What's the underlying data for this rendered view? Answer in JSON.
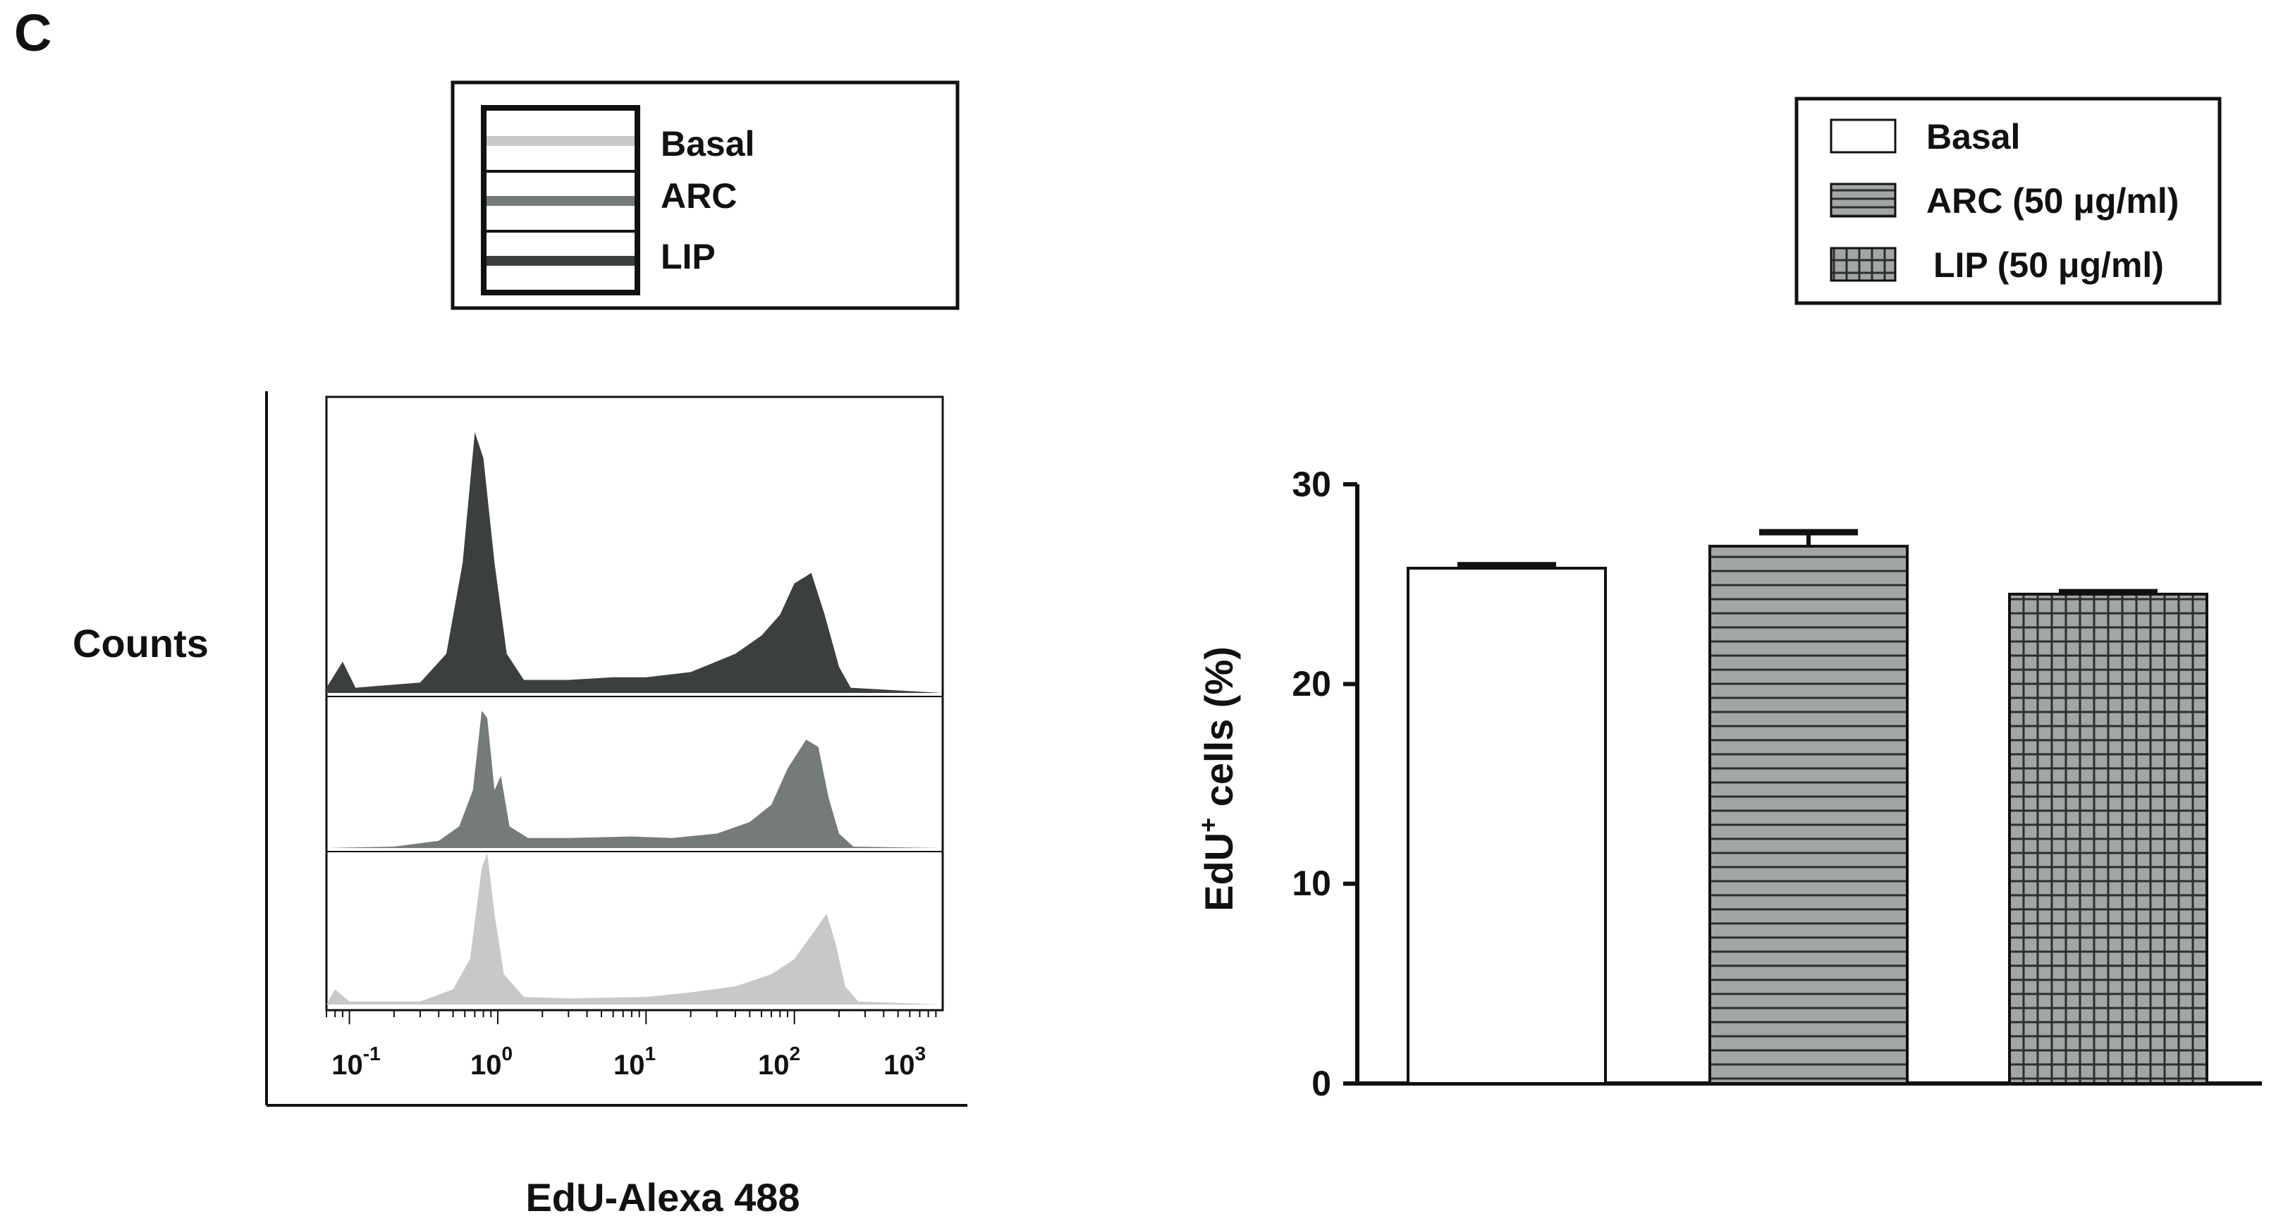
{
  "panel_label": "C",
  "colors": {
    "basal": "#c8c8c8",
    "arc": "#757a7a",
    "lip": "#3c3f3f",
    "bar_fill_hatched": "#a3a6a6",
    "bar_fill_basal": "#ffffff",
    "ink": "#111111"
  },
  "chart_data": [
    {
      "type": "area",
      "subtype": "flow-cytometry-histogram-overlay",
      "title": "",
      "xlabel": "EdU-Alexa 488",
      "ylabel": "Counts",
      "xscale": "log",
      "xlim": [
        0.07,
        1000
      ],
      "x_ticks": [
        0.1,
        1,
        10,
        100,
        1000
      ],
      "x_tick_labels": [
        {
          "base": "10",
          "exp": "-1"
        },
        {
          "base": "10",
          "exp": "0"
        },
        {
          "base": "10",
          "exp": "1"
        },
        {
          "base": "10",
          "exp": "2"
        },
        {
          "base": "10",
          "exp": "3"
        }
      ],
      "legend": {
        "position": "top",
        "entries": [
          {
            "label": "Basal",
            "swatch": "light-grey-line"
          },
          {
            "label": "ARC",
            "swatch": "mid-grey-line"
          },
          {
            "label": "LIP",
            "swatch": "dark-grey-line"
          }
        ]
      },
      "series": [
        {
          "name": "LIP",
          "order": 1,
          "peak_positions": [
            0.75,
            130
          ],
          "profile": [
            [
              0.07,
              0.02
            ],
            [
              0.09,
              0.12
            ],
            [
              0.11,
              0.02
            ],
            [
              0.3,
              0.04
            ],
            [
              0.45,
              0.15
            ],
            [
              0.58,
              0.5
            ],
            [
              0.7,
              1.0
            ],
            [
              0.8,
              0.9
            ],
            [
              0.95,
              0.5
            ],
            [
              1.15,
              0.15
            ],
            [
              1.5,
              0.05
            ],
            [
              3,
              0.05
            ],
            [
              6,
              0.06
            ],
            [
              10,
              0.06
            ],
            [
              20,
              0.08
            ],
            [
              40,
              0.15
            ],
            [
              60,
              0.22
            ],
            [
              80,
              0.3
            ],
            [
              100,
              0.42
            ],
            [
              130,
              0.46
            ],
            [
              160,
              0.3
            ],
            [
              200,
              0.1
            ],
            [
              240,
              0.02
            ],
            [
              1000,
              0.0
            ]
          ]
        },
        {
          "name": "ARC",
          "order": 2,
          "peak_positions": [
            0.8,
            130
          ],
          "profile": [
            [
              0.07,
              0.0
            ],
            [
              0.2,
              0.01
            ],
            [
              0.4,
              0.05
            ],
            [
              0.55,
              0.15
            ],
            [
              0.68,
              0.4
            ],
            [
              0.78,
              0.95
            ],
            [
              0.85,
              0.9
            ],
            [
              0.95,
              0.4
            ],
            [
              1.05,
              0.5
            ],
            [
              1.2,
              0.15
            ],
            [
              1.6,
              0.07
            ],
            [
              3,
              0.07
            ],
            [
              8,
              0.08
            ],
            [
              15,
              0.07
            ],
            [
              30,
              0.1
            ],
            [
              50,
              0.18
            ],
            [
              70,
              0.3
            ],
            [
              90,
              0.55
            ],
            [
              120,
              0.75
            ],
            [
              145,
              0.7
            ],
            [
              170,
              0.35
            ],
            [
              200,
              0.1
            ],
            [
              250,
              0.01
            ],
            [
              1000,
              0.0
            ]
          ]
        },
        {
          "name": "Basal",
          "order": 3,
          "peak_positions": [
            0.85,
            160
          ],
          "profile": [
            [
              0.07,
              0.0
            ],
            [
              0.08,
              0.1
            ],
            [
              0.1,
              0.02
            ],
            [
              0.3,
              0.02
            ],
            [
              0.5,
              0.1
            ],
            [
              0.65,
              0.3
            ],
            [
              0.78,
              0.9
            ],
            [
              0.85,
              1.0
            ],
            [
              0.95,
              0.6
            ],
            [
              1.1,
              0.2
            ],
            [
              1.5,
              0.05
            ],
            [
              3,
              0.04
            ],
            [
              10,
              0.05
            ],
            [
              20,
              0.08
            ],
            [
              40,
              0.12
            ],
            [
              70,
              0.2
            ],
            [
              100,
              0.3
            ],
            [
              140,
              0.5
            ],
            [
              165,
              0.6
            ],
            [
              190,
              0.4
            ],
            [
              220,
              0.12
            ],
            [
              270,
              0.02
            ],
            [
              1000,
              0.0
            ]
          ]
        }
      ]
    },
    {
      "type": "bar",
      "title": "",
      "xlabel": "",
      "ylabel": "EdU",
      "ylabel_superscript": "+",
      "ylabel_suffix": " cells (%)",
      "ylim": [
        0,
        30
      ],
      "y_ticks": [
        0,
        10,
        20,
        30
      ],
      "categories": [
        "Basal",
        "ARC (50 μg/ml)",
        "LIP (50 μg/ml)"
      ],
      "values": [
        25.8,
        26.9,
        24.5
      ],
      "errors": [
        0.15,
        0.7,
        0.1
      ],
      "patterns": [
        "none",
        "horizontal-lines",
        "grid"
      ],
      "legend": {
        "position": "top-right",
        "entries": [
          {
            "label": "Basal",
            "swatch": "white"
          },
          {
            "label": "ARC (50 μg/ml)",
            "swatch": "horizontal-lines"
          },
          {
            "label": "LIP (50 μg/ml)",
            "swatch": "grid"
          }
        ]
      }
    }
  ]
}
